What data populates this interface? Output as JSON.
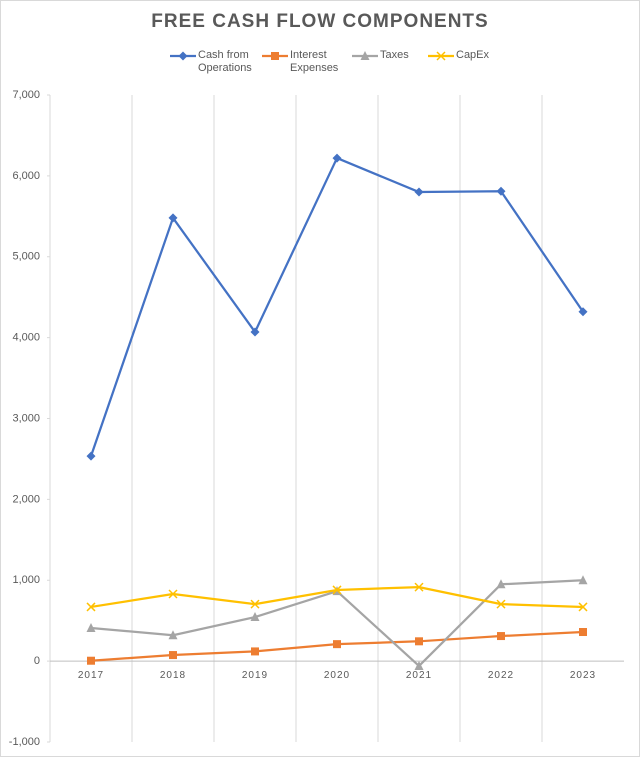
{
  "chart_data": {
    "type": "line",
    "title": "FREE CASH FLOW COMPONENTS",
    "categories": [
      "2017",
      "2018",
      "2019",
      "2020",
      "2021",
      "2022",
      "2023"
    ],
    "series": [
      {
        "name": "Cash from Operations",
        "color": "#4472c4",
        "marker": "diamond",
        "values": [
          2535,
          5480,
          4070,
          6220,
          5800,
          5810,
          4320
        ]
      },
      {
        "name": "Interest Expenses",
        "color": "#ed7d31",
        "marker": "square",
        "values": [
          5,
          75,
          120,
          210,
          245,
          310,
          360
        ]
      },
      {
        "name": "Taxes",
        "color": "#a5a5a5",
        "marker": "triangle",
        "values": [
          410,
          320,
          545,
          865,
          -60,
          950,
          1000
        ]
      },
      {
        "name": "CapEx",
        "color": "#ffc000",
        "marker": "x",
        "values": [
          670,
          830,
          705,
          880,
          915,
          705,
          670
        ]
      }
    ],
    "ylim": [
      -1000,
      7000
    ],
    "yticks": [
      {
        "value": -1000,
        "label": "-1,000"
      },
      0,
      {
        "value": 1000,
        "label": "1,000"
      },
      {
        "value": 2000,
        "label": "2,000"
      },
      {
        "value": 3000,
        "label": "3,000"
      },
      {
        "value": 4000,
        "label": "4,000"
      },
      {
        "value": 5000,
        "label": "5,000"
      },
      {
        "value": 6000,
        "label": "6,000"
      },
      {
        "value": 7000,
        "label": "7,000"
      }
    ],
    "grid": "x",
    "legend": "top"
  }
}
